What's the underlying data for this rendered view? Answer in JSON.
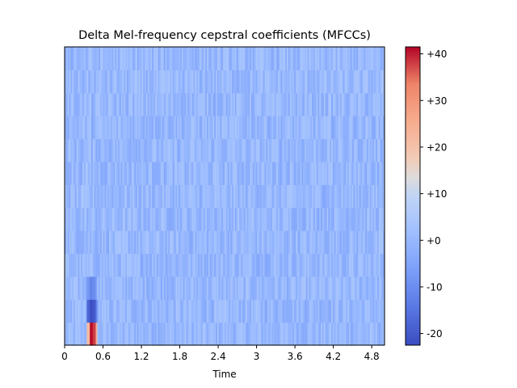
{
  "chart_data": {
    "type": "heatmap",
    "title": "Delta Mel-frequency cepstral coefficients (MFCCs)",
    "xlabel": "Time",
    "ylabel": "",
    "xlim": [
      0,
      5.0
    ],
    "x_ticks": [
      {
        "value": 0,
        "label": "0"
      },
      {
        "value": 0.6,
        "label": "0.6"
      },
      {
        "value": 1.2,
        "label": "1.2"
      },
      {
        "value": 1.8,
        "label": "1.8"
      },
      {
        "value": 2.4,
        "label": "2.4"
      },
      {
        "value": 3.0,
        "label": "3"
      },
      {
        "value": 3.6,
        "label": "3.6"
      },
      {
        "value": 4.2,
        "label": "4.2"
      },
      {
        "value": 4.8,
        "label": "4.8"
      }
    ],
    "n_coefficients": 13,
    "colormap": "coolwarm",
    "colorbar": {
      "range": [
        -22.5,
        41.5
      ],
      "ticks": [
        {
          "value": 40,
          "label": "+40"
        },
        {
          "value": 30,
          "label": "+30"
        },
        {
          "value": 20,
          "label": "+20"
        },
        {
          "value": 10,
          "label": "+10"
        },
        {
          "value": 0,
          "label": "+0"
        },
        {
          "value": -10,
          "label": "-10"
        },
        {
          "value": -20,
          "label": "-20"
        }
      ]
    },
    "features": [
      {
        "coefficient": 0,
        "time": [
          0.35,
          0.52
        ],
        "values": [
          22,
          41,
          38,
          25
        ],
        "note_col": "bright red band"
      },
      {
        "coefficient": 1,
        "time": [
          0.35,
          0.52
        ],
        "values": [
          -18,
          -22,
          -20,
          -12
        ]
      },
      {
        "coefficient": 2,
        "time": [
          0.35,
          0.52
        ],
        "values": [
          -8,
          -12,
          -10,
          -5
        ]
      }
    ],
    "background_range": [
      -6,
      6
    ]
  }
}
